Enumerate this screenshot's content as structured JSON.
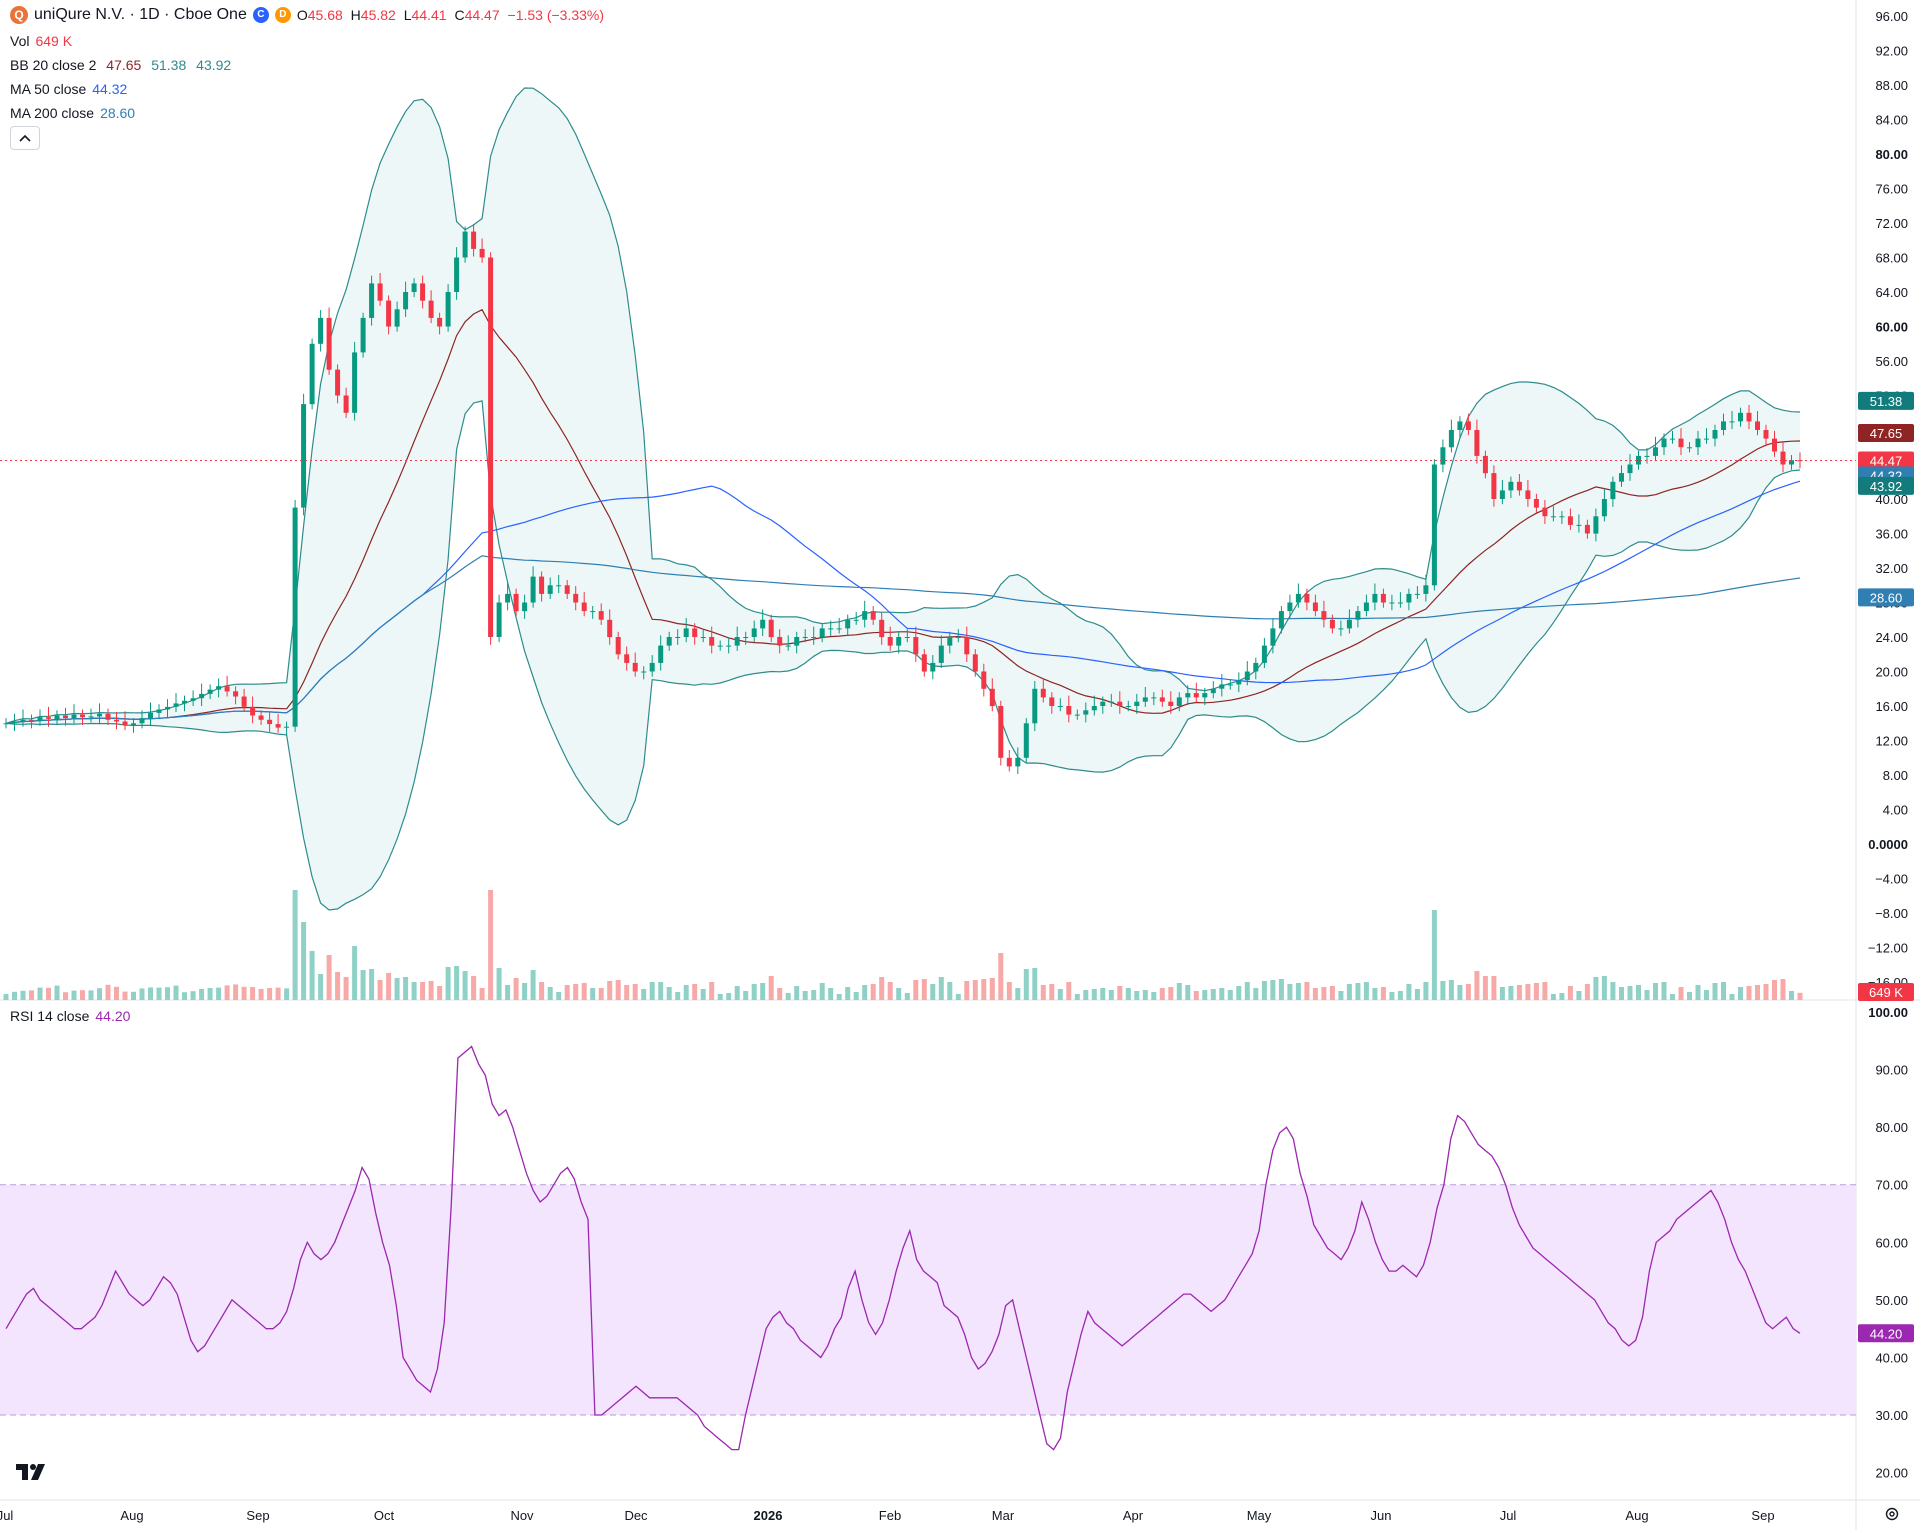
{
  "header": {
    "symbol_badge": "Q",
    "title": "uniQure N.V. · 1D · Cboe One",
    "badge_c": "C",
    "badge_d": "D",
    "ohlc": {
      "o_label": "O",
      "o": "45.68",
      "h_label": "H",
      "h": "45.82",
      "l_label": "L",
      "l": "44.41",
      "c_label": "C",
      "c": "44.47",
      "change": "−1.53 (−3.33%)"
    }
  },
  "indicators": {
    "vol": {
      "label": "Vol",
      "value": "649 K"
    },
    "bb": {
      "label": "BB 20 close 2",
      "basis": "47.65",
      "upper": "51.38",
      "lower": "43.92"
    },
    "ma50": {
      "label": "MA 50 close",
      "value": "44.32"
    },
    "ma200": {
      "label": "MA 200 close",
      "value": "28.60"
    },
    "rsi": {
      "label": "RSI 14 close",
      "value": "44.20"
    }
  },
  "collapse_icon": "chevron-up-icon",
  "colors": {
    "up": "#089981",
    "down": "#f23645",
    "bb_line": "#2e8c8c",
    "bb_fill": "#e6f3f3",
    "basis": "#8e2424",
    "ma50": "#2962ff",
    "ma200": "#2f7fb3",
    "rsi": "#9c27b0",
    "rsi_band": "#f3e5fd",
    "price_line": "#f23645"
  },
  "chart_data": [
    {
      "type": "candlestick",
      "title": "uniQure N.V. · 1D · Cboe One",
      "x_ticks": [
        "Jul",
        "Aug",
        "Sep",
        "Oct",
        "Nov",
        "Dec",
        "2026",
        "Feb",
        "Mar",
        "Apr",
        "May",
        "Jun",
        "Jul",
        "Aug",
        "Sep"
      ],
      "y_ticks": [
        "96.00",
        "92.00",
        "88.00",
        "84.00",
        "80.00",
        "76.00",
        "72.00",
        "68.00",
        "64.00",
        "60.00",
        "56.00",
        "52.00",
        "48.00",
        "44.00",
        "40.00",
        "36.00",
        "32.00",
        "28.00",
        "24.00",
        "20.00",
        "16.00",
        "12.00",
        "8.00",
        "4.00",
        "0.0000",
        "−4.00",
        "−8.00",
        "−12.00",
        "−16.00"
      ],
      "ylim": [
        -16,
        96
      ],
      "grid": true,
      "close_path": [
        14,
        14.2,
        14.4,
        14.3,
        14.7,
        14.5,
        14.9,
        14.6,
        15,
        14.7,
        14.8,
        15.1,
        14.4,
        14.2,
        13.8,
        14,
        14.6,
        15.2,
        15.6,
        15.9,
        16.3,
        16.6,
        16.9,
        17.4,
        17.9,
        18.3,
        17.7,
        17.1,
        15.9,
        14.9,
        14.4,
        13.9,
        13.5,
        13.6,
        39,
        51,
        58,
        61,
        55,
        52,
        50,
        57,
        61,
        65,
        63,
        60,
        62,
        64,
        65,
        63,
        61,
        60,
        64,
        68,
        71,
        69,
        68,
        24,
        28,
        29,
        27,
        28,
        31,
        29,
        30,
        30,
        29,
        28,
        27,
        27,
        26,
        24,
        22,
        21,
        20,
        20,
        21,
        23,
        24,
        24,
        25,
        24,
        24,
        23,
        23,
        23,
        24,
        24,
        25,
        26,
        24,
        23,
        23,
        24,
        24,
        24,
        25,
        25,
        25,
        26,
        26,
        27,
        26,
        24,
        23,
        24,
        24,
        22,
        20,
        21,
        23,
        24,
        24,
        22,
        20,
        18,
        16,
        10,
        9,
        10,
        14,
        18,
        17,
        16,
        16,
        15,
        15,
        15.5,
        16,
        16.5,
        16.5,
        16,
        16,
        16.5,
        17,
        17,
        16.5,
        16,
        17,
        17.5,
        17,
        17.5,
        18,
        18.5,
        18.5,
        19,
        20,
        21,
        23,
        25,
        27,
        28,
        29,
        28,
        27,
        26,
        25,
        25,
        26,
        27,
        28,
        29,
        28,
        28,
        28,
        29,
        29,
        30,
        44,
        46,
        48,
        49,
        48,
        45,
        43,
        40,
        41,
        42,
        41,
        40,
        39,
        38,
        38,
        38,
        37,
        37,
        36,
        38,
        40,
        42,
        43,
        44,
        45,
        45,
        46,
        47,
        47,
        46,
        46,
        47,
        47,
        48,
        49,
        49,
        50,
        49,
        48,
        47,
        45.5,
        44,
        44.5,
        44.47
      ],
      "candles_drawn": 226,
      "volume_ylim": [
        0,
        24
      ]
    },
    {
      "type": "line",
      "title": "RSI 14 close",
      "y_ticks": [
        "100.00",
        "90.00",
        "80.00",
        "70.00",
        "60.00",
        "50.00",
        "40.00",
        "30.00",
        "20.00"
      ],
      "ylim": [
        17.5,
        100
      ],
      "band": [
        30,
        70
      ],
      "rsi_path": [
        45,
        47,
        49,
        51,
        52,
        50,
        49,
        48,
        47,
        46,
        45,
        45,
        46,
        47,
        49,
        52,
        55,
        53,
        51,
        50,
        49,
        50,
        52,
        54,
        53,
        51,
        47,
        43,
        41,
        42,
        44,
        46,
        48,
        50,
        49,
        48,
        47,
        46,
        45,
        45,
        46,
        48,
        52,
        57,
        60,
        58,
        57,
        58,
        60,
        63,
        66,
        69,
        73,
        71,
        65,
        60,
        56,
        49,
        40,
        38,
        36,
        35,
        34,
        38,
        46,
        66,
        92,
        93,
        94,
        91,
        89,
        84,
        82,
        83,
        80,
        76,
        72,
        69,
        67,
        68,
        70,
        72,
        73,
        71,
        67,
        64,
        30,
        30,
        31,
        32,
        33,
        34,
        35,
        34,
        33,
        33,
        33,
        33,
        33,
        32,
        31,
        30,
        28,
        27,
        26,
        25,
        24,
        24,
        30,
        35,
        40,
        45,
        47,
        48,
        46,
        45,
        43,
        42,
        41,
        40,
        42,
        45,
        47,
        52,
        55,
        50,
        46,
        44,
        46,
        50,
        55,
        59,
        62,
        57,
        55,
        54,
        53,
        49,
        48,
        47,
        44,
        40,
        38,
        39,
        41,
        44,
        49,
        50,
        45,
        40,
        35,
        30,
        25,
        24,
        26,
        34,
        39,
        44,
        48,
        46,
        45,
        44,
        43,
        42,
        43,
        44,
        45,
        46,
        47,
        48,
        49,
        50,
        51,
        51,
        50,
        49,
        48,
        49,
        50,
        52,
        54,
        56,
        58,
        62,
        70,
        76,
        79,
        80,
        78,
        72,
        68,
        63,
        61,
        59,
        58,
        57,
        59,
        62,
        67,
        64,
        60,
        57,
        55,
        55,
        56,
        55,
        54,
        56,
        60,
        66,
        70,
        78,
        82,
        81,
        79,
        77,
        76,
        75,
        73,
        70,
        66,
        63,
        61,
        59,
        58,
        57,
        56,
        55,
        54,
        53,
        52,
        51,
        50,
        48,
        46,
        45,
        43,
        42,
        43,
        47,
        55,
        60,
        61,
        62,
        64,
        65,
        66,
        67,
        68,
        69,
        67,
        64,
        60,
        57,
        55,
        52,
        49,
        46,
        45,
        46,
        47,
        45,
        44.2
      ]
    }
  ],
  "price_labels": {
    "upper": "51.38",
    "basis": "47.65",
    "last": "44.47",
    "ma50": "44.32",
    "lower": "43.92",
    "ma200": "28.60",
    "volume": "649 K",
    "rsi": "44.20"
  }
}
